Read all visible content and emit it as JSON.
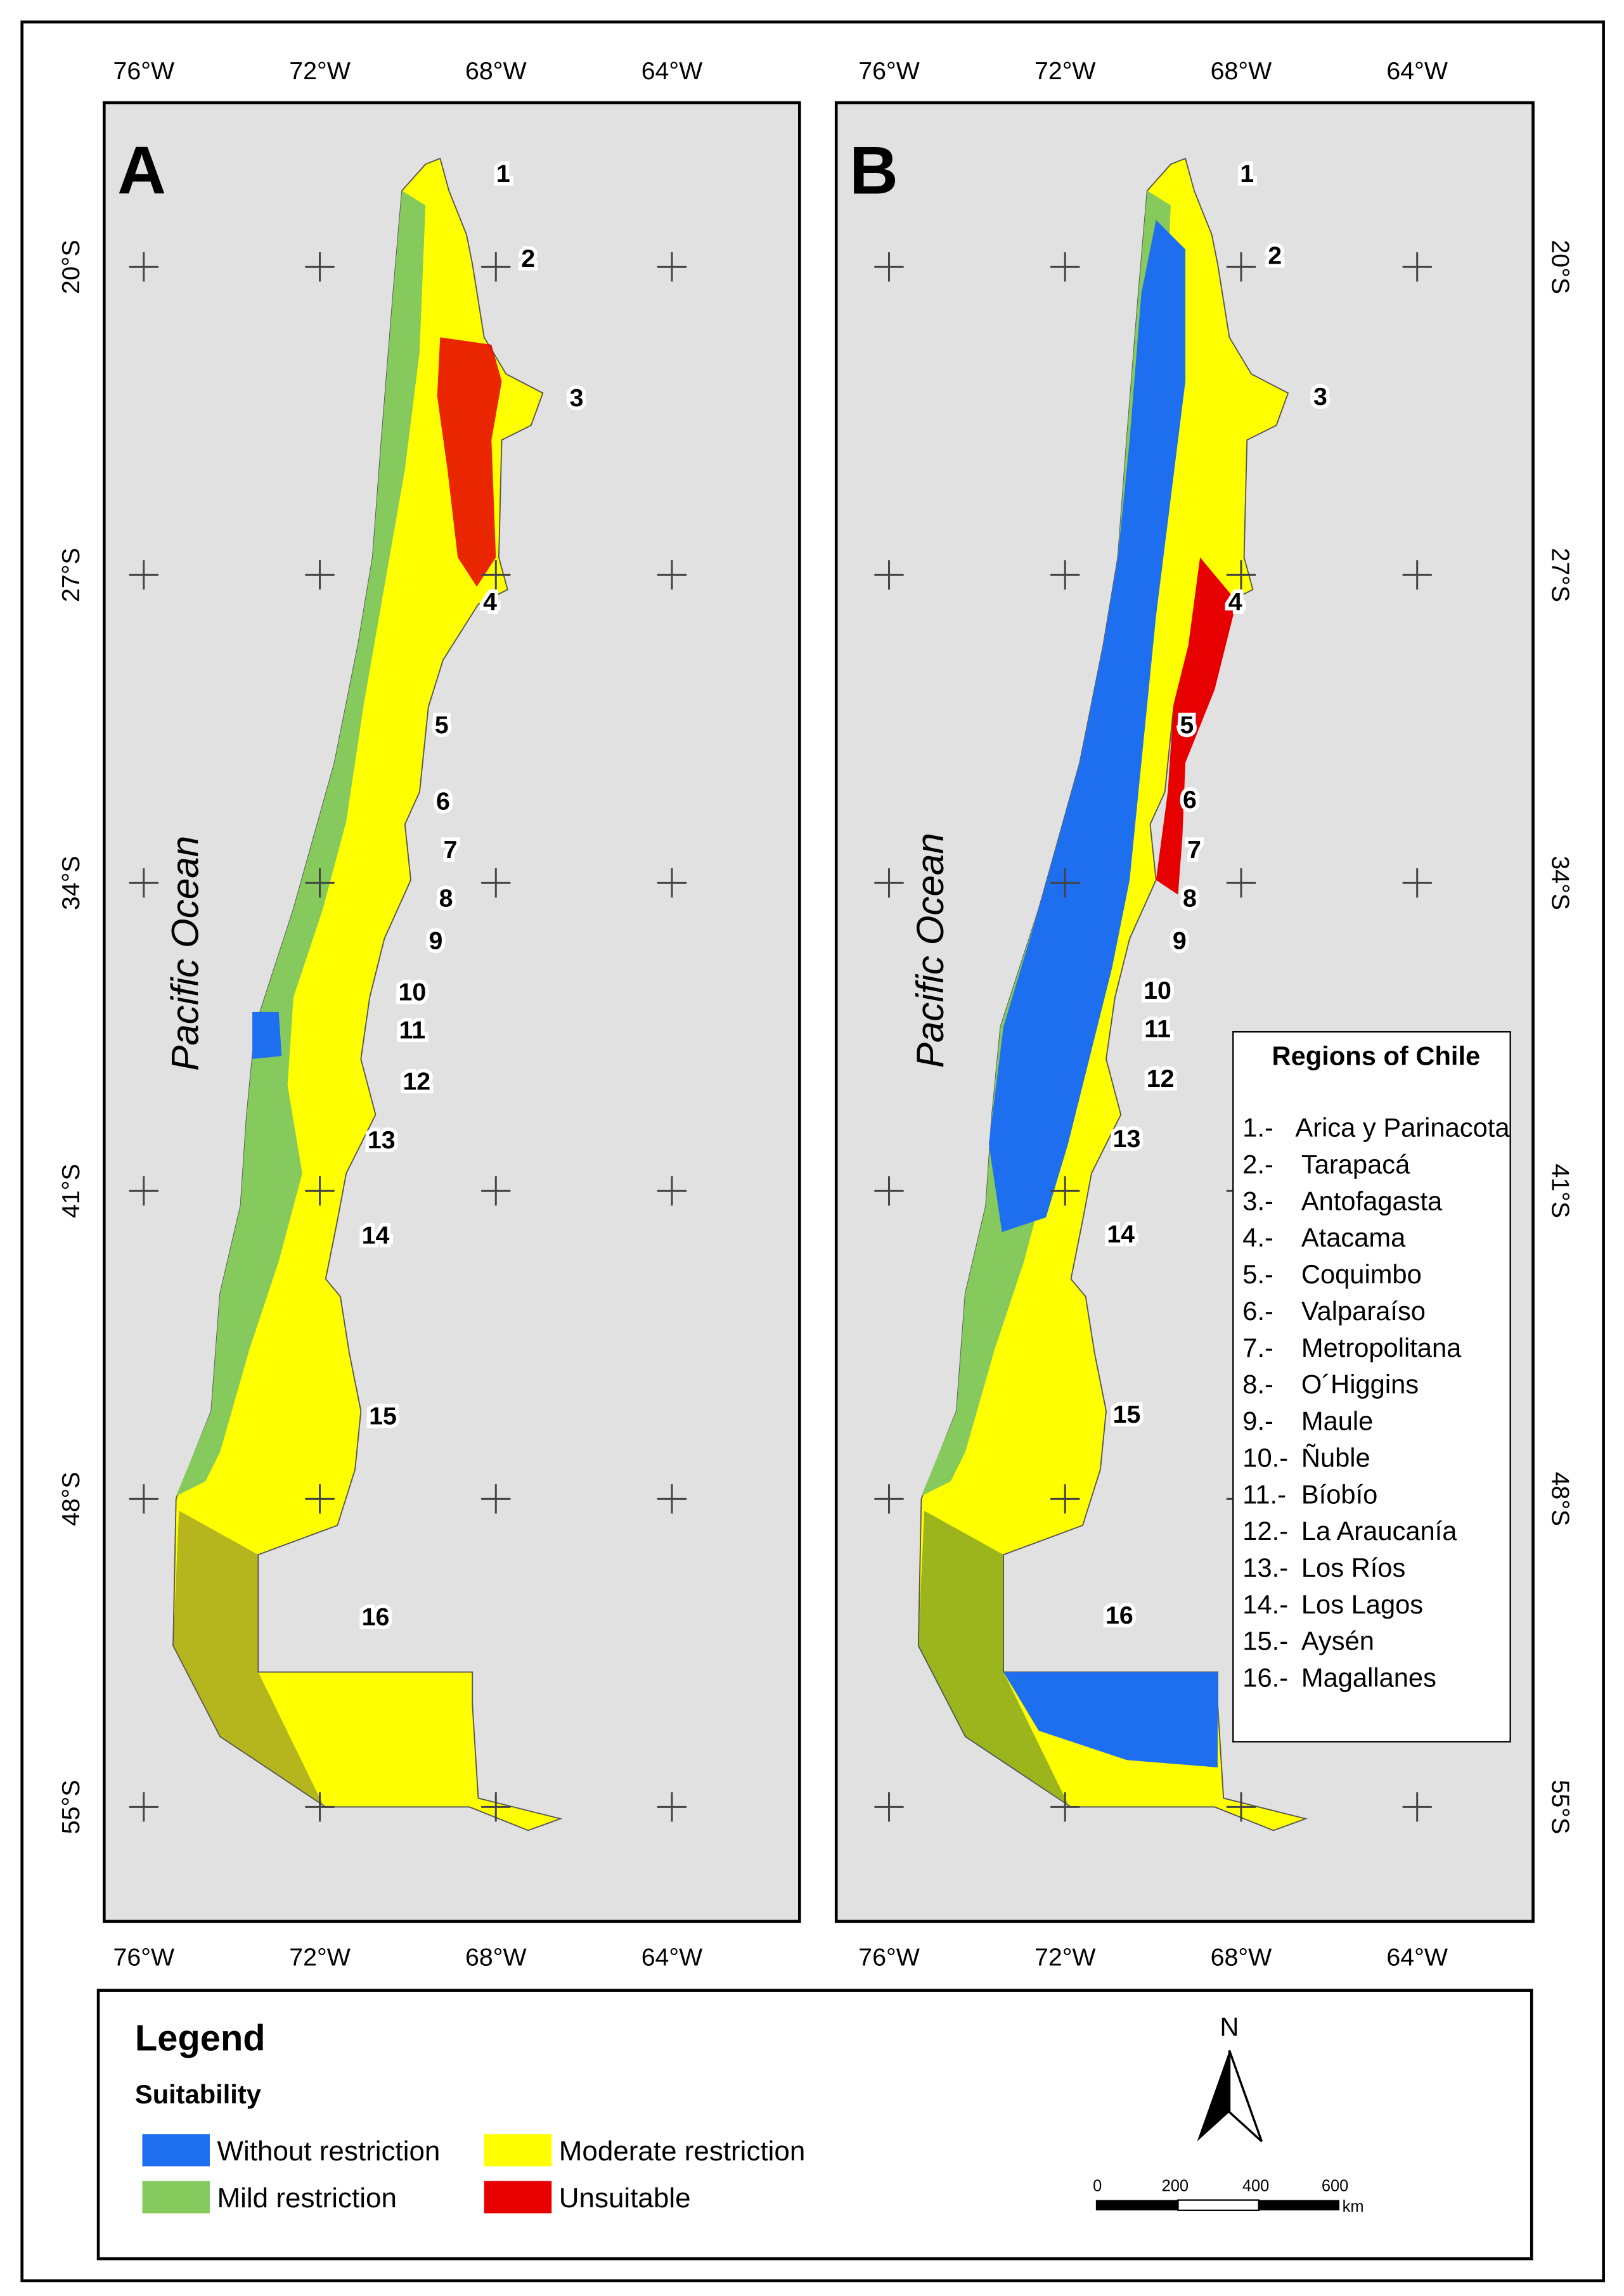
{
  "panels": [
    {
      "label": "A",
      "ocean_label": "Pacific Ocean"
    },
    {
      "label": "B",
      "ocean_label": "Pacific Ocean"
    }
  ],
  "lon_ticks": [
    "76°W",
    "72°W",
    "68°W",
    "64°W"
  ],
  "lat_ticks": [
    "20°S",
    "27°S",
    "34°S",
    "41°S",
    "48°S",
    "55°S"
  ],
  "region_numbers": [
    "1",
    "2",
    "3",
    "4",
    "5",
    "6",
    "7",
    "8",
    "9",
    "10",
    "11",
    "12",
    "13",
    "14",
    "15",
    "16"
  ],
  "regions_box": {
    "title": "Regions of Chile",
    "items": [
      {
        "number": "1.-",
        "name": "Arica y Parinacota"
      },
      {
        "number": "2.-",
        "name": "Tarapacá"
      },
      {
        "number": "3.-",
        "name": "Antofagasta"
      },
      {
        "number": "4.-",
        "name": "Atacama"
      },
      {
        "number": "5.-",
        "name": "Coquimbo"
      },
      {
        "number": "6.-",
        "name": "Valparaíso"
      },
      {
        "number": "7.-",
        "name": "Metropolitana"
      },
      {
        "number": "8.-",
        "name": "O´Higgins"
      },
      {
        "number": "9.-",
        "name": "Maule"
      },
      {
        "number": "10.-",
        "name": "Ñuble"
      },
      {
        "number": "11.-",
        "name": "Bíobío"
      },
      {
        "number": "12.-",
        "name": "La Araucanía"
      },
      {
        "number": "13.-",
        "name": "Los Ríos"
      },
      {
        "number": "14.-",
        "name": "Los Lagos"
      },
      {
        "number": "15.-",
        "name": "Aysén"
      },
      {
        "number": "16.-",
        "name": "Magallanes"
      }
    ]
  },
  "legend": {
    "title": "Legend",
    "subtitle": "Suitability",
    "items": [
      {
        "label": "Without restriction",
        "color": "#1e6ff0"
      },
      {
        "label": "Mild restriction",
        "color": "#86c95c"
      },
      {
        "label": "Moderate restriction",
        "color": "#ffff00"
      },
      {
        "label": "Unsuitable",
        "color": "#e60000"
      }
    ]
  },
  "north_arrow": "N",
  "scale_bar": {
    "ticks": [
      "0",
      "200",
      "400",
      "600"
    ],
    "unit": "km"
  }
}
